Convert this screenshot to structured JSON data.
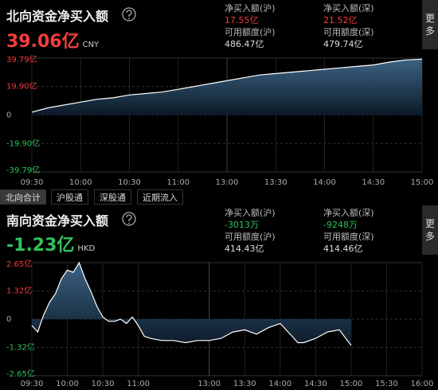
{
  "north": {
    "title": "北向资金净买入额",
    "value": "39.06亿",
    "value_color": "#f23d3d",
    "currency": "CNY",
    "stats": [
      {
        "label": "净买入额(沪)",
        "value": "17.55亿",
        "color": "#f23d3d"
      },
      {
        "label": "净买入额(深)",
        "value": "21.52亿",
        "color": "#f23d3d"
      },
      {
        "label": "可用额度(沪)",
        "value": "486.47亿"
      },
      {
        "label": "可用额度(深)",
        "value": "479.74亿"
      }
    ],
    "more": "更多"
  },
  "tabs": [
    "北向合计",
    "沪股通",
    "深股通",
    "近期流入"
  ],
  "south": {
    "title": "南向资金净买入额",
    "value": "-1.23亿",
    "value_color": "#2fc25b",
    "currency": "HKD",
    "stats": [
      {
        "label": "净买入额(沪)",
        "value": "-3013万",
        "color": "#2fc25b"
      },
      {
        "label": "净买入额(深)",
        "value": "-9248万",
        "color": "#2fc25b"
      },
      {
        "label": "可用额度(沪)",
        "value": "414.43亿"
      },
      {
        "label": "可用额度(深)",
        "value": "414.46亿"
      }
    ],
    "more": "更多"
  },
  "chart_data": [
    {
      "type": "area",
      "x": [
        "09:30",
        "09:40",
        "09:50",
        "10:00",
        "10:10",
        "10:20",
        "10:30",
        "10:40",
        "10:50",
        "11:00",
        "11:10",
        "11:20",
        "11:30",
        "13:10",
        "13:20",
        "13:30",
        "13:40",
        "13:50",
        "14:00",
        "14:10",
        "14:20",
        "14:30",
        "14:40",
        "14:50",
        "15:00"
      ],
      "values": [
        2,
        5,
        7,
        9,
        11,
        12,
        14,
        15,
        16,
        18,
        20,
        22,
        24,
        26,
        28,
        29,
        30,
        31,
        32,
        33,
        34,
        35,
        37,
        38.5,
        39.06
      ],
      "color": "#ffffff",
      "xlim": [
        "09:30",
        "15:00"
      ],
      "break": [
        "11:30",
        "13:00"
      ],
      "xticks": [
        "09:30",
        "10:00",
        "10:30",
        "11:00",
        "13:00",
        "13:30",
        "14:00",
        "14:30",
        "15:00"
      ],
      "ylim": [
        -39.79,
        39.79
      ],
      "yticks": [
        {
          "value": 39.79,
          "label": "39.79亿"
        },
        {
          "value": 19.9,
          "label": "19.90亿"
        },
        0,
        {
          "value": -19.9,
          "label": "-19.90亿"
        },
        {
          "value": -39.79,
          "label": "-39.79亿"
        }
      ],
      "grid": true
    },
    {
      "type": "area",
      "x": [
        "09:30",
        "09:35",
        "09:40",
        "09:45",
        "09:50",
        "09:55",
        "10:00",
        "10:05",
        "10:10",
        "10:15",
        "10:20",
        "10:25",
        "10:30",
        "10:35",
        "10:40",
        "10:45",
        "10:50",
        "10:55",
        "11:00",
        "11:05",
        "11:10",
        "11:20",
        "11:30",
        "11:40",
        "11:50",
        "12:00",
        "13:00",
        "13:10",
        "13:20",
        "13:30",
        "13:40",
        "13:50",
        "14:00",
        "14:05",
        "14:10",
        "14:15",
        "14:20",
        "14:30",
        "14:40",
        "14:50",
        "15:00"
      ],
      "values": [
        -0.3,
        -0.6,
        0.2,
        0.8,
        1.2,
        1.9,
        2.3,
        2.2,
        2.65,
        1.9,
        1.3,
        0.6,
        0.1,
        -0.1,
        -0.1,
        0.0,
        -0.2,
        0.1,
        -0.3,
        -0.8,
        -0.9,
        -1.0,
        -1.0,
        -1.1,
        -1.0,
        -1.0,
        -1.0,
        -0.9,
        -0.6,
        -0.5,
        -0.7,
        -0.4,
        -0.2,
        -0.5,
        -0.8,
        -1.1,
        -1.1,
        -0.9,
        -0.6,
        -0.5,
        -1.23
      ],
      "color": "#ffffff",
      "xlim": [
        "09:30",
        "16:00"
      ],
      "break": [
        "12:00",
        "13:00"
      ],
      "xticks": [
        "09:30",
        "10:00",
        "10:30",
        "11:00",
        "13:00",
        "13:30",
        "14:00",
        "14:30",
        "15:00",
        "15:30",
        "16:00"
      ],
      "ylim": [
        -2.65,
        2.65
      ],
      "yticks": [
        {
          "value": 2.65,
          "label": "2.65亿"
        },
        {
          "value": 1.32,
          "label": "1.32亿"
        },
        0,
        {
          "value": -1.32,
          "label": "-1.32亿"
        },
        {
          "value": -2.65,
          "label": "-2.65亿"
        }
      ],
      "grid": true
    }
  ]
}
